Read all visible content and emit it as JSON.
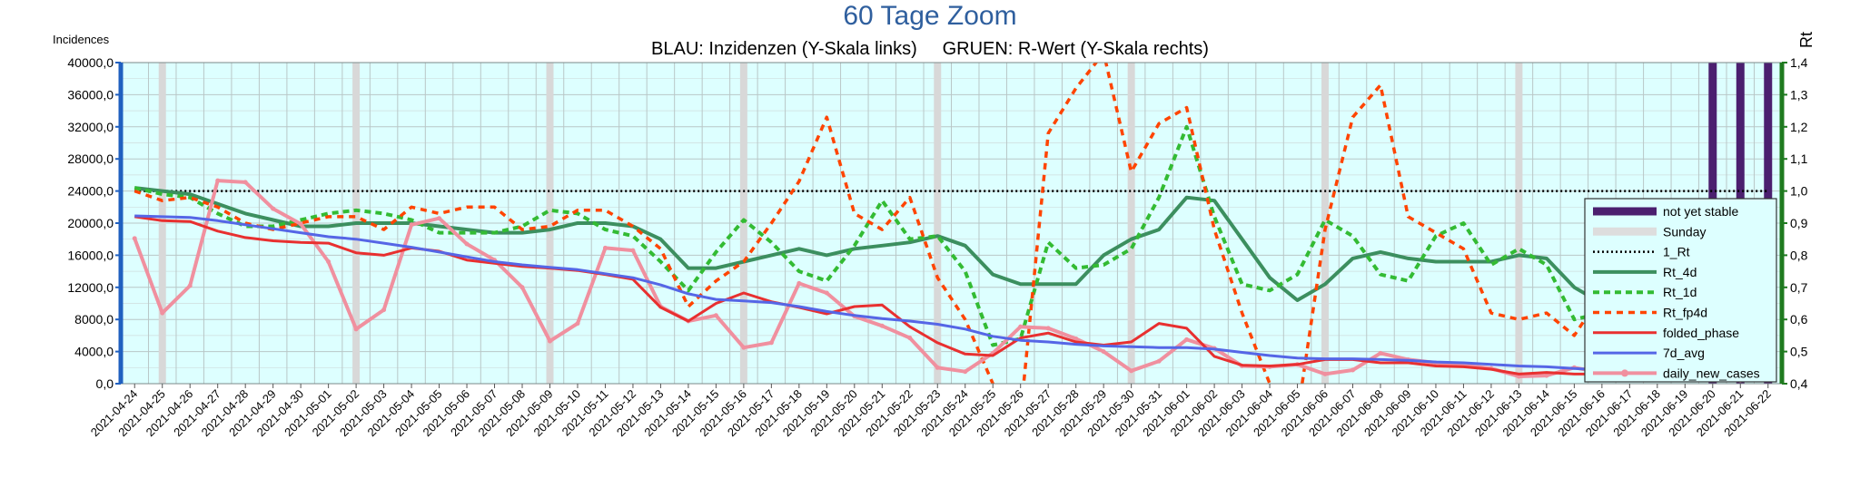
{
  "chart_data": {
    "type": "line",
    "title": "60 Tage Zoom",
    "subtitle": "BLAU: Inzidenzen (Y-Skala links)     GRUEN: R-Wert (Y-Skala rechts)",
    "ylabel": "Incidences",
    "y2label": "Rt",
    "ylim": [
      0,
      40000
    ],
    "y2lim": [
      0.4,
      1.4
    ],
    "yticks": [
      "0,0",
      "4000,0",
      "8000,0",
      "12000,0",
      "16000,0",
      "20000,0",
      "24000,0",
      "28000,0",
      "32000,0",
      "36000,0",
      "40000,0"
    ],
    "y2ticks": [
      "0,4",
      "0,5",
      "0,6",
      "0,7",
      "0,8",
      "0,9",
      "1,0",
      "1,1",
      "1,2",
      "1,3",
      "1,4"
    ],
    "grid": true,
    "legend_position": "right",
    "x": [
      "2021-04-24",
      "2021-04-25",
      "2021-04-26",
      "2021-04-27",
      "2021-04-28",
      "2021-04-29",
      "2021-04-30",
      "2021-05-01",
      "2021-05-02",
      "2021-05-03",
      "2021-05-04",
      "2021-05-05",
      "2021-05-06",
      "2021-05-07",
      "2021-05-08",
      "2021-05-09",
      "2021-05-10",
      "2021-05-11",
      "2021-05-12",
      "2021-05-13",
      "2021-05-14",
      "2021-05-15",
      "2021-05-16",
      "2021-05-17",
      "2021-05-18",
      "2021-05-19",
      "2021-05-20",
      "2021-05-21",
      "2021-05-22",
      "2021-05-23",
      "2021-05-24",
      "2021-05-25",
      "2021-05-26",
      "2021-05-27",
      "2021-05-28",
      "2021-05-29",
      "2021-05-30",
      "2021-05-31",
      "2021-06-01",
      "2021-06-02",
      "2021-06-03",
      "2021-06-04",
      "2021-06-05",
      "2021-06-06",
      "2021-06-07",
      "2021-06-08",
      "2021-06-09",
      "2021-06-10",
      "2021-06-11",
      "2021-06-12",
      "2021-06-13",
      "2021-06-14",
      "2021-06-15",
      "2021-06-16",
      "2021-06-17",
      "2021-06-18",
      "2021-06-19",
      "2021-06-20",
      "2021-06-21",
      "2021-06-22"
    ],
    "sundays": [
      "2021-04-25",
      "2021-05-02",
      "2021-05-09",
      "2021-05-16",
      "2021-05-23",
      "2021-05-30",
      "2021-06-06",
      "2021-06-13"
    ],
    "not_yet_stable": [
      "2021-06-20",
      "2021-06-21",
      "2021-06-22"
    ],
    "series": [
      {
        "name": "not yet stable",
        "kind": "band",
        "color": "#4b1f6f"
      },
      {
        "name": "Sunday",
        "kind": "band",
        "color": "#dddddd"
      },
      {
        "name": "1_Rt",
        "kind": "line",
        "axis": "right",
        "color": "#000000",
        "style": "dotted",
        "values": [
          1.0,
          1.0,
          1.0,
          1.0,
          1.0,
          1.0,
          1.0,
          1.0,
          1.0,
          1.0,
          1.0,
          1.0,
          1.0,
          1.0,
          1.0,
          1.0,
          1.0,
          1.0,
          1.0,
          1.0,
          1.0,
          1.0,
          1.0,
          1.0,
          1.0,
          1.0,
          1.0,
          1.0,
          1.0,
          1.0,
          1.0,
          1.0,
          1.0,
          1.0,
          1.0,
          1.0,
          1.0,
          1.0,
          1.0,
          1.0,
          1.0,
          1.0,
          1.0,
          1.0,
          1.0,
          1.0,
          1.0,
          1.0,
          1.0,
          1.0,
          1.0,
          1.0,
          1.0,
          1.0,
          1.0,
          1.0,
          1.0,
          1.0,
          1.0,
          1.0
        ]
      },
      {
        "name": "Rt_4d",
        "kind": "line",
        "axis": "right",
        "color": "#3c8f5f",
        "style": "solid",
        "values": [
          1.01,
          1.0,
          0.99,
          0.96,
          0.93,
          0.91,
          0.89,
          0.89,
          0.9,
          0.9,
          0.9,
          0.89,
          0.88,
          0.87,
          0.87,
          0.88,
          0.9,
          0.9,
          0.89,
          0.85,
          0.76,
          0.76,
          0.78,
          0.8,
          0.82,
          0.8,
          0.82,
          0.83,
          0.84,
          0.86,
          0.83,
          0.74,
          0.71,
          0.71,
          0.71,
          0.8,
          0.85,
          0.88,
          0.98,
          0.97,
          0.85,
          0.73,
          0.66,
          0.71,
          0.79,
          0.81,
          0.79,
          0.78,
          0.78,
          0.78,
          0.8,
          0.79,
          0.7,
          0.65,
          0.63,
          0.61,
          0.64,
          0.7,
          0.73,
          0.71
        ]
      },
      {
        "name": "Rt_1d",
        "kind": "line",
        "axis": "right",
        "color": "#33bb33",
        "style": "dashed",
        "values": [
          1.01,
          0.99,
          0.98,
          0.93,
          0.89,
          0.89,
          0.91,
          0.93,
          0.94,
          0.93,
          0.91,
          0.87,
          0.87,
          0.87,
          0.89,
          0.94,
          0.93,
          0.88,
          0.86,
          0.78,
          0.69,
          0.81,
          0.91,
          0.84,
          0.75,
          0.72,
          0.83,
          0.97,
          0.85,
          0.86,
          0.75,
          0.52,
          0.54,
          0.84,
          0.76,
          0.77,
          0.82,
          0.98,
          1.2,
          0.92,
          0.71,
          0.69,
          0.74,
          0.91,
          0.86,
          0.74,
          0.72,
          0.86,
          0.9,
          0.77,
          0.82,
          0.77,
          0.6,
          0.62,
          0.64,
          0.68,
          0.74,
          0.84,
          0.87,
          0.62
        ]
      },
      {
        "name": "Rt_fp4d",
        "kind": "line",
        "axis": "right",
        "color": "#ff4400",
        "style": "dashed",
        "values": [
          1.0,
          0.97,
          0.98,
          0.95,
          0.9,
          0.88,
          0.9,
          0.92,
          0.92,
          0.88,
          0.95,
          0.93,
          0.95,
          0.95,
          0.88,
          0.89,
          0.94,
          0.94,
          0.89,
          0.82,
          0.64,
          0.72,
          0.78,
          0.9,
          1.03,
          1.23,
          0.93,
          0.88,
          0.98,
          0.73,
          0.6,
          0.4,
          0.3,
          1.18,
          1.32,
          1.43,
          1.06,
          1.21,
          1.26,
          0.88,
          0.62,
          0.4,
          0.3,
          0.88,
          1.23,
          1.33,
          0.92,
          0.87,
          0.82,
          0.62,
          0.6,
          0.62,
          0.55,
          0.68,
          0.8,
          0.77,
          0.88,
          0.85,
          0.89,
          0.65
        ]
      },
      {
        "name": "folded_phase",
        "kind": "line",
        "axis": "left",
        "color": "#e83030",
        "style": "solid",
        "values": [
          20800,
          20300,
          20200,
          19000,
          18200,
          17800,
          17600,
          17500,
          16300,
          16000,
          16900,
          16500,
          15400,
          15000,
          14600,
          14400,
          14100,
          13600,
          13000,
          9500,
          7800,
          10000,
          11300,
          10200,
          9500,
          8700,
          9600,
          9800,
          7100,
          5100,
          3700,
          3500,
          5700,
          6300,
          5200,
          4800,
          5200,
          7500,
          6900,
          3400,
          2300,
          2200,
          2400,
          3000,
          3000,
          2600,
          2600,
          2200,
          2100,
          1800,
          1200,
          1400,
          1200,
          1200,
          1000,
          900,
          800,
          700,
          600,
          600
        ]
      },
      {
        "name": "7d_avg",
        "kind": "line",
        "axis": "left",
        "color": "#5566e6",
        "style": "solid",
        "values": [
          20900,
          20800,
          20700,
          20300,
          19800,
          19300,
          18800,
          18300,
          18000,
          17500,
          17000,
          16400,
          15800,
          15200,
          14800,
          14500,
          14200,
          13700,
          13200,
          12300,
          11200,
          10500,
          10300,
          10100,
          9600,
          9000,
          8500,
          8100,
          7800,
          7400,
          6800,
          5900,
          5400,
          5200,
          4900,
          4700,
          4600,
          4500,
          4500,
          4300,
          3900,
          3500,
          3200,
          3100,
          3100,
          3000,
          2900,
          2700,
          2600,
          2400,
          2200,
          2100,
          1900,
          1700,
          1500,
          1400,
          1300,
          1200,
          1100,
          1000
        ]
      },
      {
        "name": "daily_new_cases",
        "kind": "line",
        "axis": "left",
        "color": "#f0909f",
        "style": "solid",
        "values": [
          18100,
          8800,
          12200,
          25300,
          25100,
          21800,
          19900,
          15200,
          6800,
          9200,
          19800,
          20600,
          17400,
          15400,
          12000,
          5300,
          7500,
          16900,
          16600,
          9600,
          7800,
          8500,
          4500,
          5100,
          12500,
          11300,
          8400,
          7200,
          5700,
          2000,
          1500,
          3800,
          7100,
          6900,
          5600,
          4000,
          1600,
          2800,
          5500,
          4400,
          2200,
          2100,
          2400,
          1200,
          1700,
          3800,
          3000,
          2600,
          2300,
          1900,
          900,
          1000,
          2000,
          1400,
          1000,
          800,
          700,
          500,
          400,
          500
        ]
      }
    ]
  }
}
